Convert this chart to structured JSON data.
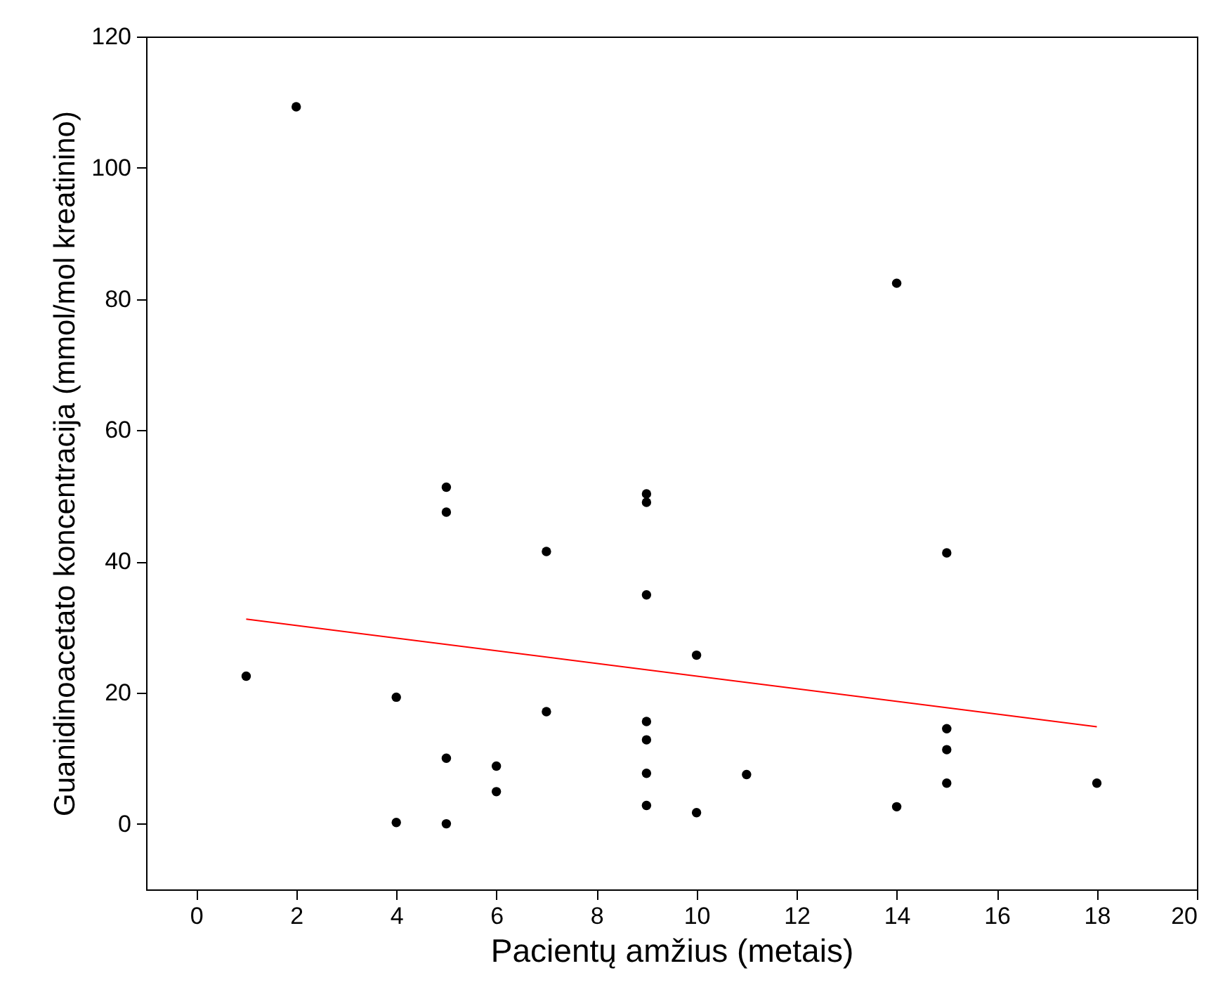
{
  "chart_data": {
    "type": "scatter",
    "xlabel": "Pacientų amžius (metais)",
    "ylabel": "Guanidinoacetato koncentracija (mmol/mol kreatinino)",
    "x": [
      2,
      1,
      4,
      4,
      5,
      5,
      5,
      5,
      6,
      6,
      7,
      7,
      9,
      9,
      9,
      9,
      9,
      9,
      9,
      10,
      10,
      11,
      14,
      14,
      15,
      15,
      15,
      15,
      18
    ],
    "series": [
      {
        "color": "#000000",
        "marker": "circle",
        "values": [
          109.3,
          22.5,
          19.3,
          0.2,
          51.3,
          47.5,
          10,
          0,
          8.8,
          4.9,
          41.5,
          17.1,
          50.3,
          49,
          34.9,
          15.6,
          12.8,
          7.7,
          2.8,
          25.7,
          1.7,
          7.5,
          82.4,
          2.6,
          41.3,
          14.5,
          11.3,
          6.2,
          6.2
        ]
      },
      {
        "type": "line",
        "color": "#ff0000",
        "x": [
          1,
          18
        ],
        "values": [
          31.2,
          14.8
        ]
      }
    ],
    "line_style": "solid",
    "xlim": [
      -1,
      20
    ],
    "xticks": [
      0,
      2,
      4,
      6,
      8,
      10,
      12,
      14,
      16,
      18,
      20
    ],
    "ylim": [
      -10,
      120
    ],
    "yticks": [
      0,
      20,
      40,
      60,
      80,
      100,
      120
    ]
  }
}
